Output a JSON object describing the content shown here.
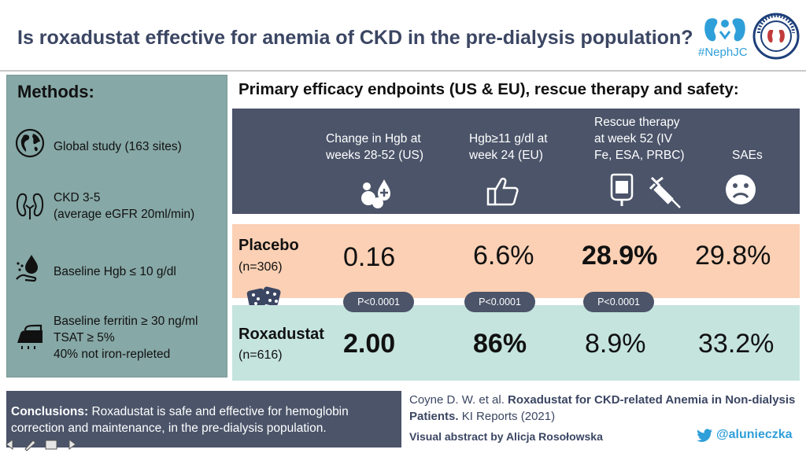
{
  "header": {
    "title": "Is roxadustat effective for anemia of CKD in the pre-dialysis population?",
    "hashtag": "#NephJC",
    "seal_text": "NEPHROLOGY SOCIAL MEDIA COLLECTIVE"
  },
  "methods": {
    "title": "Methods:",
    "items": [
      {
        "icon": "globe-icon",
        "lines": [
          "Global study (163 sites)"
        ]
      },
      {
        "icon": "kidneys-icon",
        "lines": [
          "CKD 3-5",
          "(average eGFR 20ml/min)"
        ]
      },
      {
        "icon": "blood-drop-hand-icon",
        "lines": [
          "Baseline Hgb ≤ 10 g/dl"
        ]
      },
      {
        "icon": "iron-icon",
        "lines": [
          "Baseline ferritin ≥ 30 ng/ml",
          "TSAT ≥ 5%",
          "40% not iron-repleted"
        ]
      }
    ]
  },
  "results": {
    "title": "Primary efficacy endpoints (US & EU), rescue therapy and safety:",
    "columns": [
      {
        "label_lines": [
          "Change in Hgb at",
          "weeks 28-52 (US)"
        ],
        "icon": "pills-icon"
      },
      {
        "label_lines": [
          "Hgb≥11 g/dl at",
          "week 24 (EU)"
        ],
        "icon": "thumbs-up-icon"
      },
      {
        "label_lines": [
          "Rescue therapy",
          "at week 52 (IV",
          "Fe, ESA, PRBC)"
        ],
        "icon": "iv-bag-syringe-icon"
      },
      {
        "label_lines": [
          "SAEs"
        ],
        "icon": "sad-face-icon"
      }
    ],
    "groups": [
      {
        "name": "Placebo",
        "n": "(n=306)",
        "values": [
          "0.16",
          "6.6%",
          "28.9%",
          "29.8%"
        ],
        "bold": [
          false,
          false,
          true,
          false
        ]
      },
      {
        "name": "Roxadustat",
        "n": "(n=616)",
        "values": [
          "2.00",
          "86%",
          "8.9%",
          "33.2%"
        ],
        "bold": [
          true,
          true,
          false,
          false
        ]
      }
    ],
    "pvalues": [
      "P<0.0001",
      "P<0.0001",
      "P<0.0001"
    ],
    "dice_icon": "dice-icon"
  },
  "conclusions": {
    "label": "Conclusions:",
    "text": " Roxadustat is safe and effective for hemoglobin correction and maintenance, in the pre-dialysis population."
  },
  "citation": {
    "authors": "Coyne D. W. et al. ",
    "title": "Roxadustat for CKD-related Anemia in Non-dialysis Patients.",
    "journal": " KI Reports (2021)",
    "credit": "Visual abstract by Alicja Rosołowska",
    "handle": "@alunieczka"
  },
  "colors": {
    "navy": "#4b5469",
    "teal": "#86a8a6",
    "peach": "#fbd0b4",
    "mint": "#c5e4de",
    "title": "#3b4663",
    "twitter": "#2f9fd9"
  }
}
